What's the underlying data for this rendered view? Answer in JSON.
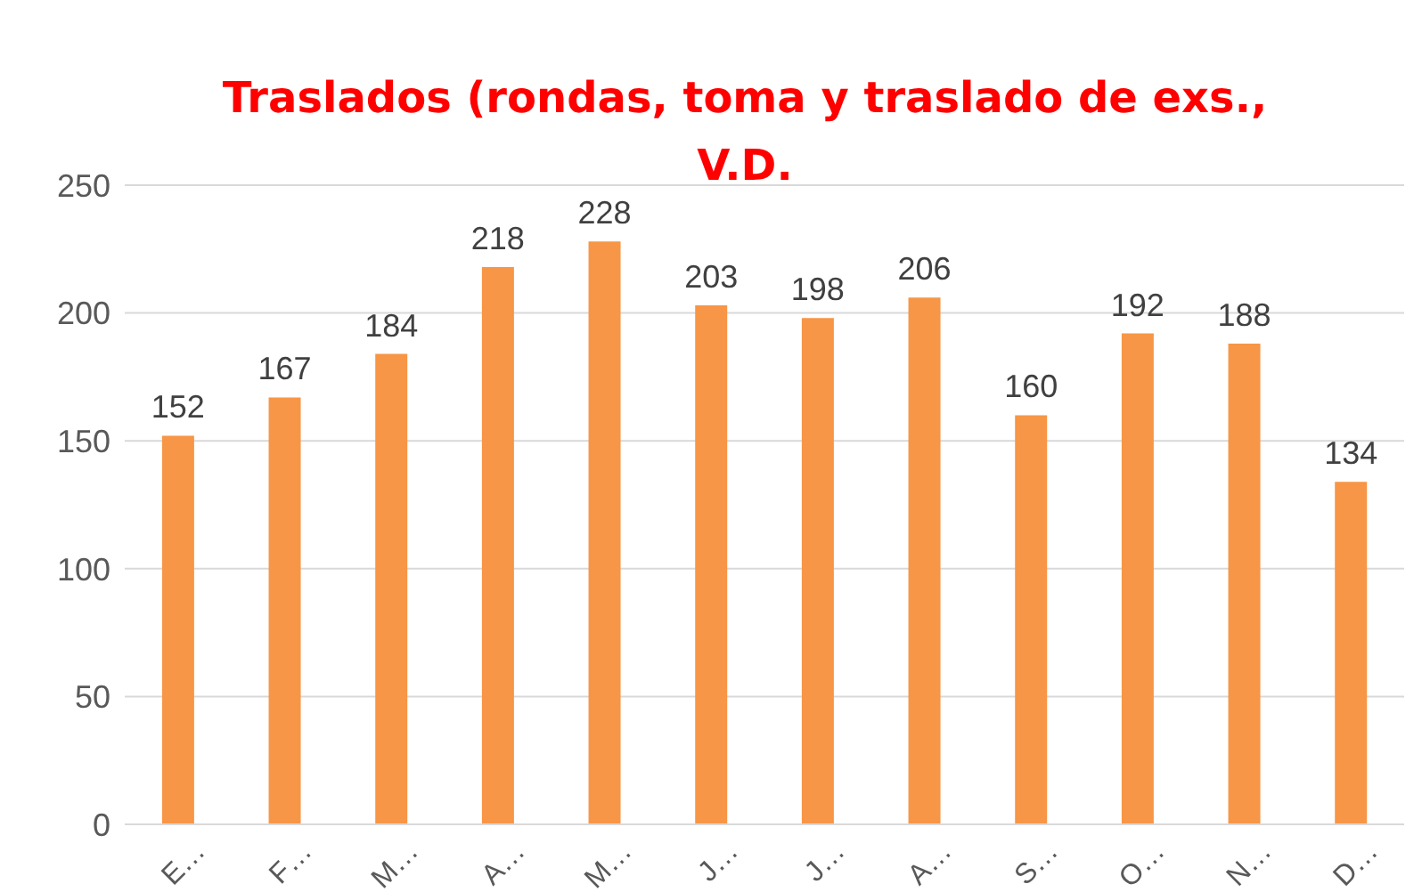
{
  "chart_data": {
    "type": "bar",
    "title": "Traslados (rondas, toma y traslado de  exs., V.D.",
    "categories": [
      "E…",
      "F…",
      "M…",
      "A…",
      "M…",
      "J…",
      "J…",
      "A…",
      "S…",
      "O…",
      "N…",
      "D…"
    ],
    "values": [
      152,
      167,
      184,
      218,
      228,
      203,
      198,
      206,
      160,
      192,
      188,
      134
    ],
    "color": "#f79646",
    "ylim": [
      0,
      250
    ],
    "yticks": [
      0,
      50,
      100,
      150,
      200,
      250
    ],
    "grid": "y",
    "data_labels": true
  }
}
